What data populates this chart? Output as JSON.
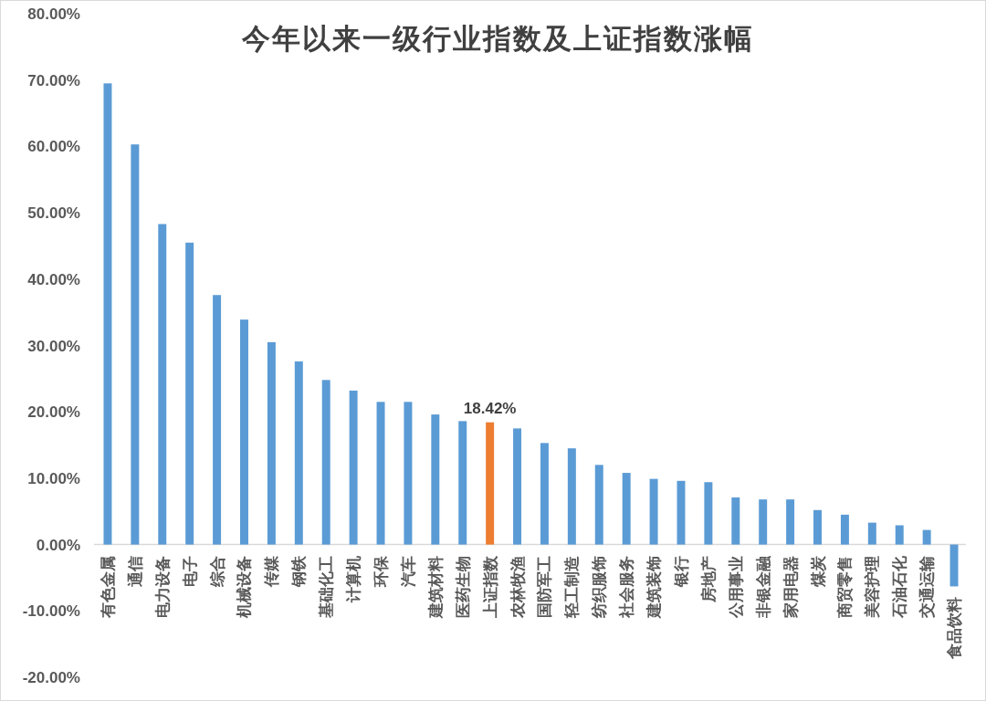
{
  "chart_data": {
    "type": "bar",
    "title": "今年以来一级行业指数及上证指数涨幅",
    "categories": [
      "有色金属",
      "通信",
      "电力设备",
      "电子",
      "综合",
      "机械设备",
      "传媒",
      "钢铁",
      "基础化工",
      "计算机",
      "环保",
      "汽车",
      "建筑材料",
      "医药生物",
      "上证指数",
      "农林牧渔",
      "国防军工",
      "轻工制造",
      "纺织服饰",
      "社会服务",
      "建筑装饰",
      "银行",
      "房地产",
      "公用事业",
      "非银金融",
      "家用电器",
      "煤炭",
      "商贸零售",
      "美容护理",
      "石油石化",
      "交通运输",
      "食品饮料"
    ],
    "values": [
      69.5,
      60.3,
      48.3,
      45.5,
      37.6,
      33.9,
      30.5,
      27.6,
      24.8,
      23.2,
      21.5,
      21.5,
      19.6,
      18.6,
      18.42,
      17.5,
      15.3,
      14.5,
      12.0,
      10.8,
      9.9,
      9.6,
      9.4,
      7.1,
      6.8,
      6.8,
      5.2,
      4.5,
      3.3,
      2.9,
      2.2,
      -6.3
    ],
    "colors": [
      "#5b9bd5",
      "#5b9bd5",
      "#5b9bd5",
      "#5b9bd5",
      "#5b9bd5",
      "#5b9bd5",
      "#5b9bd5",
      "#5b9bd5",
      "#5b9bd5",
      "#5b9bd5",
      "#5b9bd5",
      "#5b9bd5",
      "#5b9bd5",
      "#5b9bd5",
      "#ed7d31",
      "#5b9bd5",
      "#5b9bd5",
      "#5b9bd5",
      "#5b9bd5",
      "#5b9bd5",
      "#5b9bd5",
      "#5b9bd5",
      "#5b9bd5",
      "#5b9bd5",
      "#5b9bd5",
      "#5b9bd5",
      "#5b9bd5",
      "#5b9bd5",
      "#5b9bd5",
      "#5b9bd5",
      "#5b9bd5",
      "#5b9bd5"
    ],
    "value_labels": [
      null,
      null,
      null,
      null,
      null,
      null,
      null,
      null,
      null,
      null,
      null,
      null,
      null,
      null,
      "18.42%",
      null,
      null,
      null,
      null,
      null,
      null,
      null,
      null,
      null,
      null,
      null,
      null,
      null,
      null,
      null,
      null,
      null
    ],
    "ylim": [
      -20,
      80
    ],
    "yticks": [
      {
        "value": -20,
        "label": "-20.00%"
      },
      {
        "value": -10,
        "label": "-10.00%"
      },
      {
        "value": 0,
        "label": "0.00%"
      },
      {
        "value": 10,
        "label": "10.00%"
      },
      {
        "value": 20,
        "label": "20.00%"
      },
      {
        "value": 30,
        "label": "30.00%"
      },
      {
        "value": 40,
        "label": "40.00%"
      },
      {
        "value": 50,
        "label": "50.00%"
      },
      {
        "value": 60,
        "label": "60.00%"
      },
      {
        "value": 70,
        "label": "70.00%"
      },
      {
        "value": 80,
        "label": "80.00%"
      }
    ]
  }
}
